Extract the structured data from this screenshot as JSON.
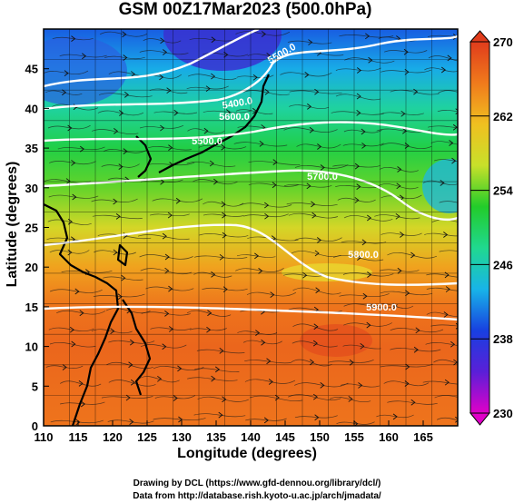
{
  "chart_data": {
    "type": "heatmap",
    "title": "GSM 00Z17Mar2023 (500.0hPa)",
    "xlabel": "Longitude (degrees)",
    "ylabel": "Latitude (degrees)",
    "xlim": [
      110,
      170
    ],
    "ylim": [
      0,
      50
    ],
    "x_ticks": [
      "110",
      "115",
      "120",
      "125",
      "130",
      "135",
      "140",
      "145",
      "150",
      "155",
      "160",
      "165"
    ],
    "y_ticks": [
      "0",
      "5",
      "10",
      "15",
      "20",
      "25",
      "30",
      "35",
      "40",
      "45"
    ],
    "colorbar": {
      "min": 230,
      "max": 270,
      "ticks": [
        "230",
        "238",
        "246",
        "254",
        "262",
        "270"
      ],
      "colors": [
        "#e000c8",
        "#5a1fd8",
        "#1840e0",
        "#18b4e8",
        "#20d890",
        "#22cc2a",
        "#c8e02a",
        "#f0c020",
        "#f07a1c",
        "#e03c1c"
      ]
    },
    "temperature_by_latitude": [
      {
        "lat": 0,
        "value": 266
      },
      {
        "lat": 10,
        "value": 267
      },
      {
        "lat": 15,
        "value": 266
      },
      {
        "lat": 20,
        "value": 263
      },
      {
        "lat": 25,
        "value": 258
      },
      {
        "lat": 30,
        "value": 254
      },
      {
        "lat": 35,
        "value": 251
      },
      {
        "lat": 40,
        "value": 247
      },
      {
        "lat": 45,
        "value": 243
      },
      {
        "lat": 50,
        "value": 240
      }
    ],
    "contour_labels": [
      "5500.0",
      "5400.0",
      "5600.0",
      "5500.0",
      "5700.0",
      "5800.0",
      "5900.0"
    ],
    "grid": true
  },
  "credits": {
    "line1": "Drawing by DCL (https://www.gfd-dennou.org/library/dcl/)",
    "line2": "Data from http://database.rish.kyoto-u.ac.jp/arch/jmadata/"
  }
}
